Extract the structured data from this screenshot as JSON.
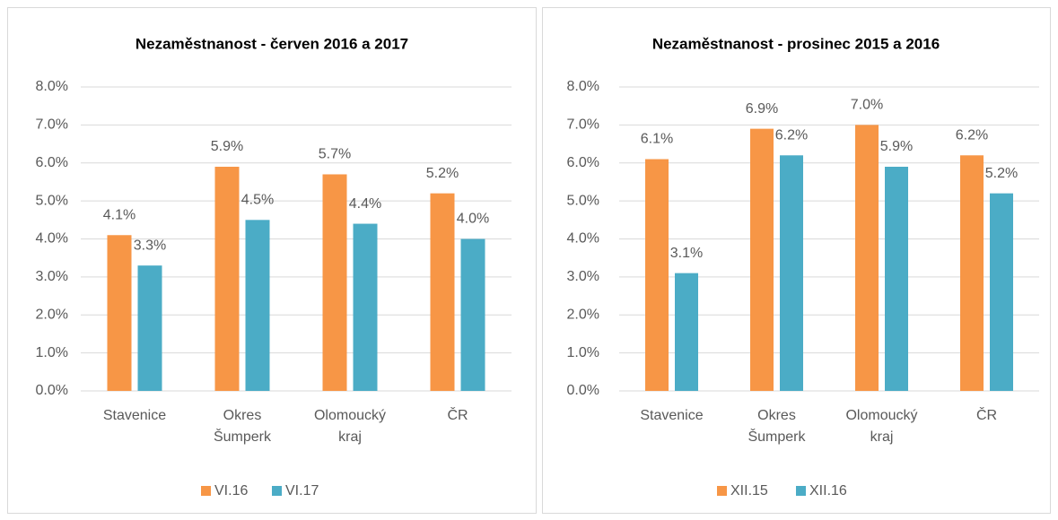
{
  "chart_data": [
    {
      "type": "bar",
      "title": "Nezaměstnanost - červen 2016 a 2017",
      "categories": [
        "Stavenice",
        "Okres Šumperk",
        "Olomoucký kraj",
        "ČR"
      ],
      "series": [
        {
          "name": "VI.16",
          "color": "#f79646",
          "values": [
            4.1,
            5.9,
            5.7,
            5.2
          ],
          "value_labels": [
            "4.1%",
            "5.9%",
            "5.7%",
            "5.2%"
          ]
        },
        {
          "name": "VI.17",
          "color": "#4bacc6",
          "values": [
            3.3,
            4.5,
            4.4,
            4.0
          ],
          "value_labels": [
            "3.3%",
            "4.5%",
            "4.4%",
            "4.0%"
          ]
        }
      ],
      "ylim": [
        0,
        8
      ],
      "yticks": [
        {
          "value": 0,
          "label": "0.0%"
        },
        {
          "value": 1,
          "label": "1.0%"
        },
        {
          "value": 2,
          "label": "2.0%"
        },
        {
          "value": 3,
          "label": "3.0%"
        },
        {
          "value": 4,
          "label": "4.0%"
        },
        {
          "value": 5,
          "label": "5.0%"
        },
        {
          "value": 6,
          "label": "6.0%"
        },
        {
          "value": 7,
          "label": "7.0%"
        },
        {
          "value": 8,
          "label": "8.0%"
        }
      ],
      "grid": true,
      "legend": "bottom"
    },
    {
      "type": "bar",
      "title": "Nezaměstnanost - prosinec 2015 a 2016",
      "categories": [
        "Stavenice",
        "Okres Šumperk",
        "Olomoucký kraj",
        "ČR"
      ],
      "series": [
        {
          "name": "XII.15",
          "color": "#f79646",
          "values": [
            6.1,
            6.9,
            7.0,
            6.2
          ],
          "value_labels": [
            "6.1%",
            "6.9%",
            "7.0%",
            "6.2%"
          ]
        },
        {
          "name": "XII.16",
          "color": "#4bacc6",
          "values": [
            3.1,
            6.2,
            5.9,
            5.2
          ],
          "value_labels": [
            "3.1%",
            "6.2%",
            "5.9%",
            "5.2%"
          ]
        }
      ],
      "ylim": [
        0,
        8
      ],
      "yticks": [
        {
          "value": 0,
          "label": "0.0%"
        },
        {
          "value": 1,
          "label": "1.0%"
        },
        {
          "value": 2,
          "label": "2.0%"
        },
        {
          "value": 3,
          "label": "3.0%"
        },
        {
          "value": 4,
          "label": "4.0%"
        },
        {
          "value": 5,
          "label": "5.0%"
        },
        {
          "value": 6,
          "label": "6.0%"
        },
        {
          "value": 7,
          "label": "7.0%"
        },
        {
          "value": 8,
          "label": "8.0%"
        }
      ],
      "grid": true,
      "legend": "bottom"
    }
  ]
}
